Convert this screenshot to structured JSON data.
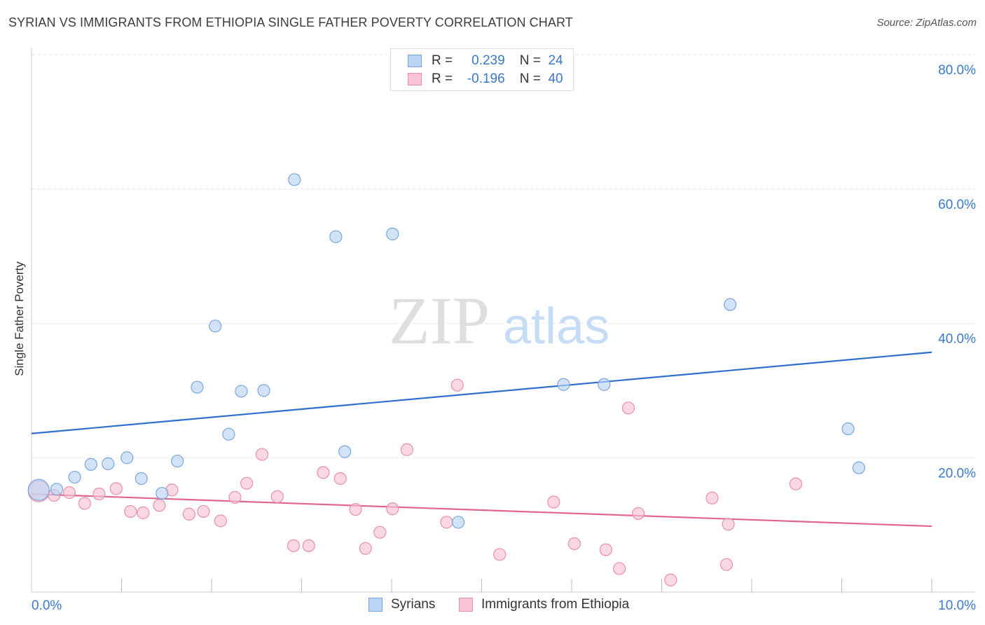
{
  "title": "SYRIAN VS IMMIGRANTS FROM ETHIOPIA SINGLE FATHER POVERTY CORRELATION CHART",
  "source": "Source: ZipAtlas.com",
  "watermark": {
    "zip": "ZIP",
    "atlas": "atlas"
  },
  "legend": {
    "rows": [
      {
        "r_label": "R =",
        "r_value": "0.239",
        "n_label": "N =",
        "n_value": "24"
      },
      {
        "r_label": "R =",
        "r_value": "-0.196",
        "n_label": "N =",
        "n_value": "40"
      }
    ]
  },
  "bottom_legend": {
    "syrians": "Syrians",
    "ethiopia": "Immigrants from Ethiopia"
  },
  "colors": {
    "syrians_fill": "#bcd4f3",
    "syrians_stroke": "#7aa6de",
    "syrians_line": "#2f6fcc",
    "ethiopia_fill": "#f8c3d3",
    "ethiopia_stroke": "#ea8fab",
    "ethiopia_line": "#e0668f",
    "axis_text": "#3a78c9",
    "grid": "#e3e3e3"
  },
  "chart_data": {
    "type": "scatter",
    "title": "SYRIAN VS IMMIGRANTS FROM ETHIOPIA SINGLE FATHER POVERTY CORRELATION CHART",
    "xlabel": "",
    "ylabel": "Single Father Poverty",
    "xlim": [
      0,
      10
    ],
    "ylim": [
      0,
      80
    ],
    "x_tick_labels": [
      "0.0%",
      "10.0%"
    ],
    "y_ticks": [
      20,
      40,
      60,
      80
    ],
    "y_tick_labels": [
      "20.0%",
      "40.0%",
      "60.0%",
      "80.0%"
    ],
    "grid": true,
    "legend_position": "top-center",
    "series": [
      {
        "name": "Syrians",
        "r": 0.239,
        "n": 24,
        "trend": {
          "x": [
            0,
            10
          ],
          "y": [
            23.6,
            35.7
          ]
        },
        "points": [
          {
            "x": 0.08,
            "y": 15.2,
            "big": true
          },
          {
            "x": 0.28,
            "y": 15.3
          },
          {
            "x": 0.48,
            "y": 17.1
          },
          {
            "x": 0.66,
            "y": 19.0
          },
          {
            "x": 0.85,
            "y": 19.1
          },
          {
            "x": 1.06,
            "y": 20.0
          },
          {
            "x": 1.22,
            "y": 16.9
          },
          {
            "x": 1.45,
            "y": 14.7
          },
          {
            "x": 1.62,
            "y": 19.5
          },
          {
            "x": 1.84,
            "y": 30.5
          },
          {
            "x": 2.04,
            "y": 39.6
          },
          {
            "x": 2.19,
            "y": 23.5
          },
          {
            "x": 2.33,
            "y": 29.9
          },
          {
            "x": 2.58,
            "y": 30.0
          },
          {
            "x": 2.92,
            "y": 61.4
          },
          {
            "x": 3.38,
            "y": 52.9
          },
          {
            "x": 3.48,
            "y": 20.9
          },
          {
            "x": 4.01,
            "y": 53.3
          },
          {
            "x": 4.74,
            "y": 10.4
          },
          {
            "x": 5.91,
            "y": 30.9
          },
          {
            "x": 6.36,
            "y": 30.9
          },
          {
            "x": 7.76,
            "y": 42.8
          },
          {
            "x": 9.07,
            "y": 24.3
          },
          {
            "x": 9.19,
            "y": 18.5
          }
        ]
      },
      {
        "name": "Immigrants from Ethiopia",
        "r": -0.196,
        "n": 40,
        "trend": {
          "x": [
            0,
            10
          ],
          "y": [
            14.6,
            9.8
          ]
        },
        "points": [
          {
            "x": 0.08,
            "y": 15.0,
            "big": true
          },
          {
            "x": 0.25,
            "y": 14.4
          },
          {
            "x": 0.42,
            "y": 14.8
          },
          {
            "x": 0.59,
            "y": 13.2
          },
          {
            "x": 0.75,
            "y": 14.6
          },
          {
            "x": 0.94,
            "y": 15.4
          },
          {
            "x": 1.1,
            "y": 12.0
          },
          {
            "x": 1.24,
            "y": 11.8
          },
          {
            "x": 1.42,
            "y": 12.9
          },
          {
            "x": 1.56,
            "y": 15.2
          },
          {
            "x": 1.75,
            "y": 11.6
          },
          {
            "x": 1.91,
            "y": 12.0
          },
          {
            "x": 2.1,
            "y": 10.6
          },
          {
            "x": 2.26,
            "y": 14.1
          },
          {
            "x": 2.39,
            "y": 16.2
          },
          {
            "x": 2.56,
            "y": 20.5
          },
          {
            "x": 2.73,
            "y": 14.2
          },
          {
            "x": 2.91,
            "y": 6.9
          },
          {
            "x": 3.08,
            "y": 6.9
          },
          {
            "x": 3.24,
            "y": 17.8
          },
          {
            "x": 3.43,
            "y": 16.9
          },
          {
            "x": 3.6,
            "y": 12.3
          },
          {
            "x": 3.71,
            "y": 6.5
          },
          {
            "x": 3.87,
            "y": 8.9
          },
          {
            "x": 4.01,
            "y": 12.4
          },
          {
            "x": 4.17,
            "y": 21.2
          },
          {
            "x": 4.61,
            "y": 10.4
          },
          {
            "x": 4.73,
            "y": 30.8
          },
          {
            "x": 5.2,
            "y": 5.6
          },
          {
            "x": 5.8,
            "y": 13.4
          },
          {
            "x": 6.03,
            "y": 7.2
          },
          {
            "x": 6.38,
            "y": 6.3
          },
          {
            "x": 6.53,
            "y": 3.5
          },
          {
            "x": 6.63,
            "y": 27.4
          },
          {
            "x": 6.74,
            "y": 11.7
          },
          {
            "x": 7.1,
            "y": 1.8
          },
          {
            "x": 7.56,
            "y": 14.0
          },
          {
            "x": 7.72,
            "y": 4.1
          },
          {
            "x": 7.74,
            "y": 10.1
          },
          {
            "x": 8.49,
            "y": 16.1
          }
        ]
      }
    ]
  }
}
